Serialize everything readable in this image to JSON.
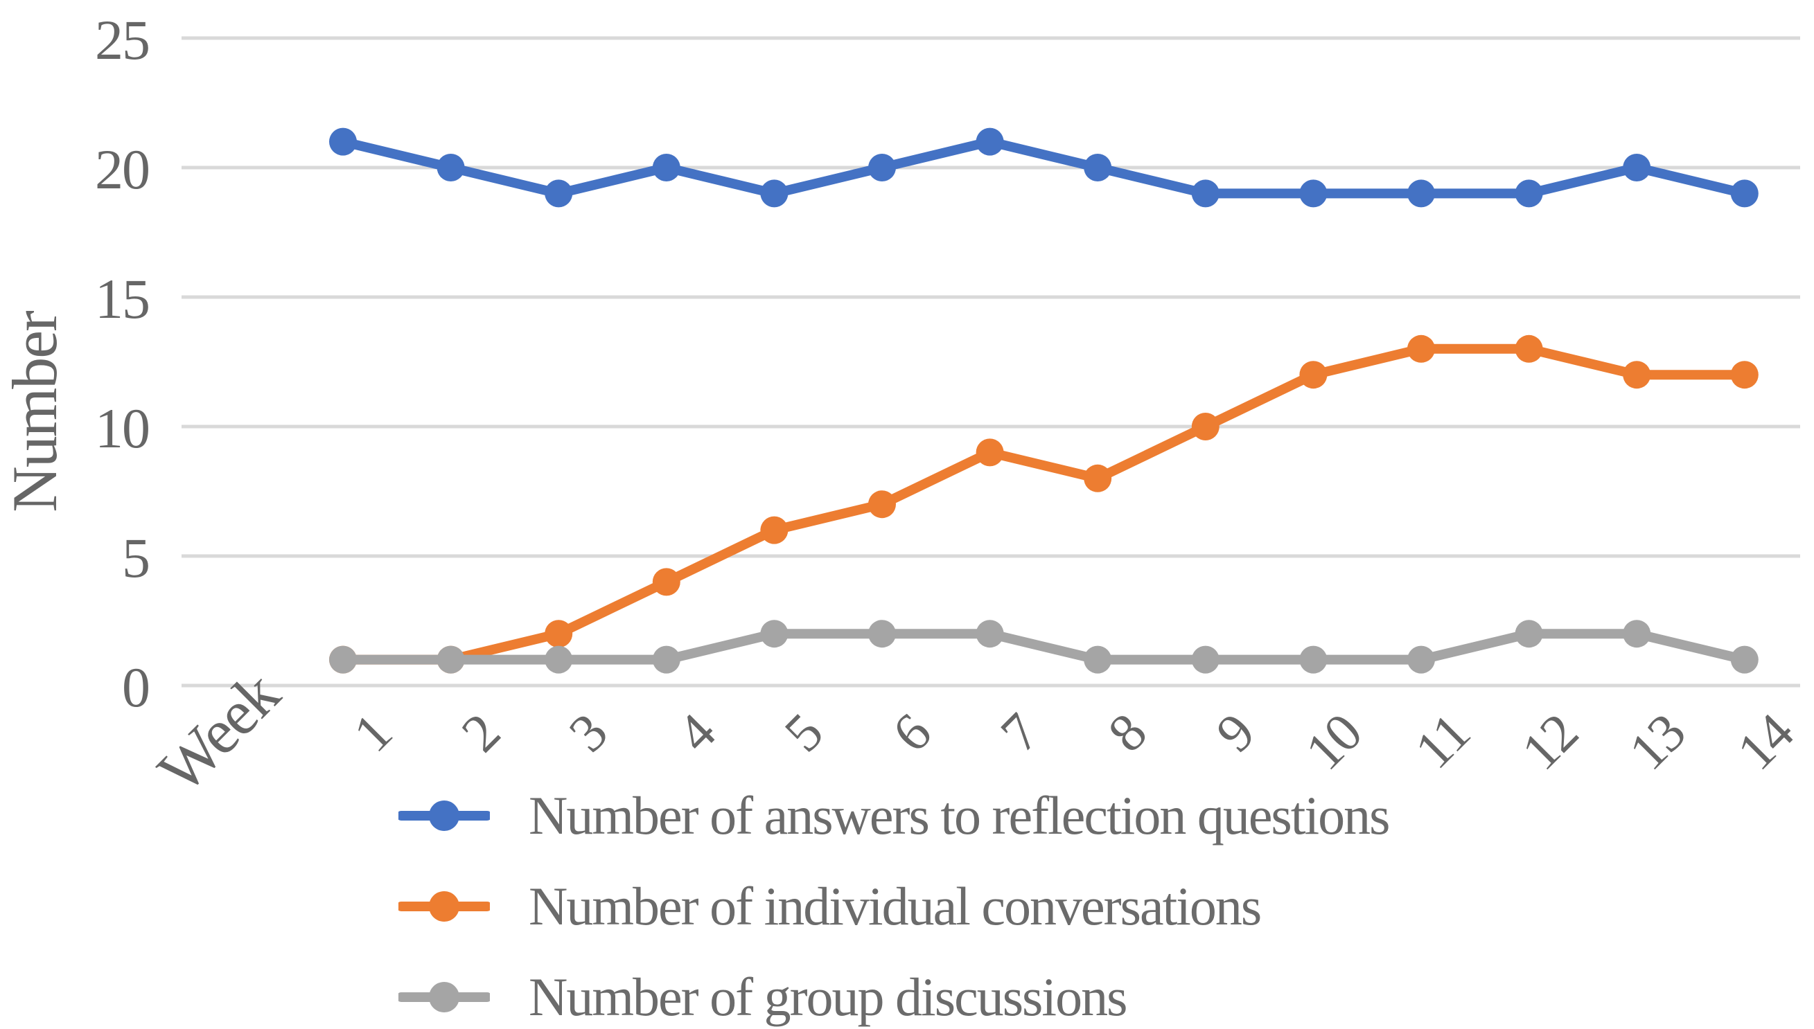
{
  "chart_data": {
    "type": "line",
    "title": "",
    "xlabel": "Week",
    "ylabel": "Number",
    "x": [
      1,
      2,
      3,
      4,
      5,
      6,
      7,
      8,
      9,
      10,
      11,
      12,
      13,
      14
    ],
    "yticks": [
      0,
      5,
      10,
      15,
      20,
      25
    ],
    "ylim": [
      0,
      25
    ],
    "grid": "horizontal",
    "legend_position": "bottom-left",
    "series": [
      {
        "name": "Number of answers to reflection questions",
        "color": "#4472C4",
        "values": [
          21,
          20,
          19,
          20,
          19,
          20,
          21,
          20,
          19,
          19,
          19,
          19,
          20,
          19
        ]
      },
      {
        "name": "Number of individual conversations",
        "color": "#ED7D31",
        "values": [
          1,
          1,
          2,
          4,
          6,
          7,
          9,
          8,
          10,
          12,
          13,
          13,
          12,
          12
        ]
      },
      {
        "name": "Number of group discussions",
        "color": "#A5A5A5",
        "values": [
          1,
          1,
          1,
          1,
          2,
          2,
          2,
          1,
          1,
          1,
          1,
          2,
          2,
          1
        ]
      }
    ]
  },
  "colors": {
    "gridline": "#D9D9D9",
    "axis_text": "#666666",
    "legend_text": "#6b6b6b",
    "background": "#ffffff"
  }
}
